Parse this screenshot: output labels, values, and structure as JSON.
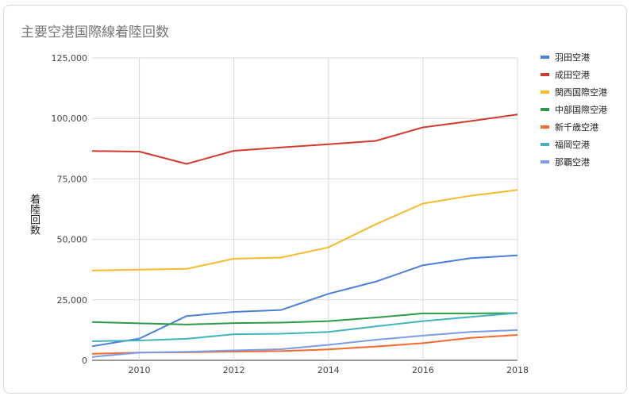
{
  "chart_data": {
    "type": "line",
    "title": "主要空港国際線着陸回数",
    "xlabel": "",
    "ylabel": "着陸回数",
    "x": [
      2009,
      2010,
      2011,
      2012,
      2013,
      2014,
      2015,
      2016,
      2017,
      2018
    ],
    "xlim": [
      2009,
      2018
    ],
    "xticks": [
      "2010",
      "2012",
      "2014",
      "2016",
      "2018"
    ],
    "ylim": [
      0,
      125000
    ],
    "yticks": [
      "0",
      "25,000",
      "50,000",
      "75,000",
      "100,000",
      "125,000"
    ],
    "grid": true,
    "legend": "right",
    "series": [
      {
        "name": "羽田空港",
        "color": "#4a7fdb",
        "values": [
          5800,
          9000,
          18300,
          20000,
          20800,
          27500,
          32500,
          39300,
          42200,
          43400
        ]
      },
      {
        "name": "成田空港",
        "color": "#d33a2f",
        "values": [
          86500,
          86300,
          81200,
          86600,
          88000,
          89300,
          90700,
          96300,
          98900,
          101600
        ]
      },
      {
        "name": "関西国際空港",
        "color": "#f4bb2d",
        "values": [
          37100,
          37500,
          37800,
          42000,
          42500,
          46700,
          56200,
          64800,
          68000,
          70400
        ]
      },
      {
        "name": "中部国際空港",
        "color": "#2d9a47",
        "values": [
          15800,
          15300,
          14800,
          15400,
          15600,
          16200,
          17700,
          19400,
          19400,
          19500
        ]
      },
      {
        "name": "新千歳空港",
        "color": "#f26a2c",
        "values": [
          2700,
          3200,
          3300,
          3600,
          3800,
          4500,
          5700,
          7100,
          9300,
          10500
        ]
      },
      {
        "name": "福岡空港",
        "color": "#40b4b9",
        "values": [
          7900,
          8200,
          8900,
          10800,
          11000,
          11700,
          14000,
          16200,
          17900,
          19600
        ]
      },
      {
        "name": "那覇空港",
        "color": "#7b9ce6",
        "values": [
          1400,
          3200,
          3500,
          4100,
          4600,
          6400,
          8500,
          10200,
          11700,
          12500
        ]
      }
    ]
  }
}
